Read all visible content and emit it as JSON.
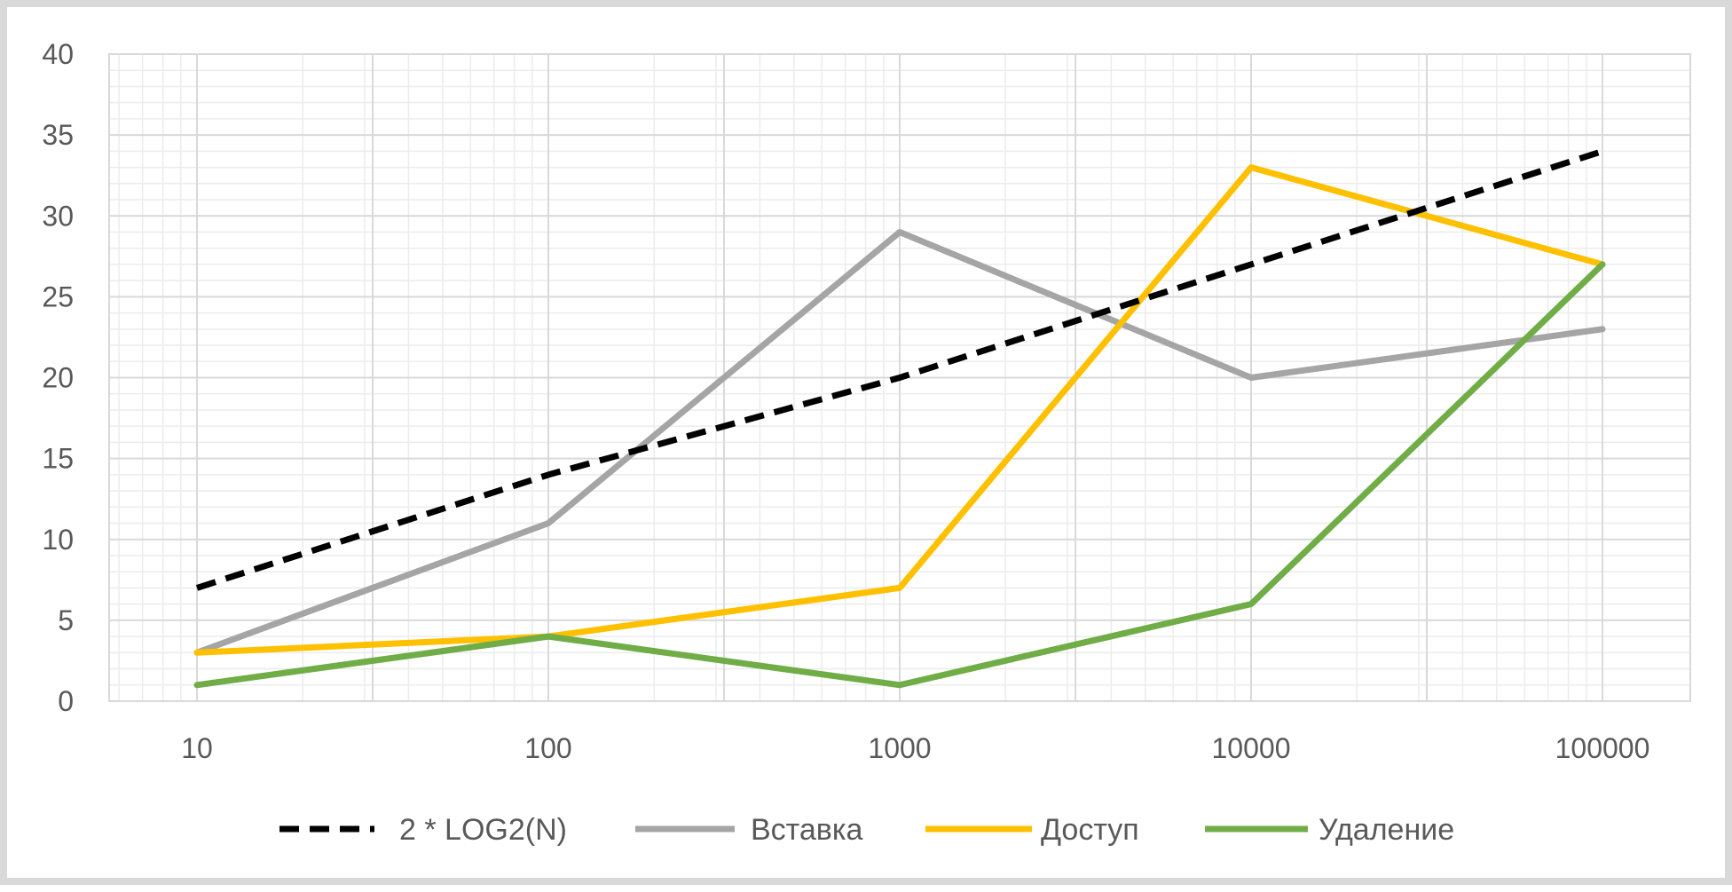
{
  "chart_data": {
    "type": "line",
    "title": "",
    "xlabel": "",
    "ylabel": "",
    "x_scale": "log",
    "categories": [
      "10",
      "100",
      "1000",
      "10000",
      "100000"
    ],
    "x": [
      10,
      100,
      1000,
      10000,
      100000
    ],
    "ylim": [
      0,
      40
    ],
    "yticks": [
      "0",
      "5",
      "10",
      "15",
      "20",
      "25",
      "30",
      "35",
      "40"
    ],
    "grid": true,
    "legend_position": "bottom",
    "series": [
      {
        "name": "2 * LOG2(N)",
        "values": [
          7,
          14,
          20,
          27,
          34
        ],
        "color": "#000000",
        "dashed": true
      },
      {
        "name": "Вставка",
        "values": [
          3,
          11,
          29,
          20,
          23
        ],
        "color": "#a5a5a5",
        "dashed": false
      },
      {
        "name": "Доступ",
        "values": [
          3,
          4,
          7,
          33,
          27
        ],
        "color": "#ffc000",
        "dashed": false
      },
      {
        "name": "Удаление",
        "values": [
          1,
          4,
          1,
          6,
          27
        ],
        "color": "#70ad47",
        "dashed": false
      }
    ]
  }
}
